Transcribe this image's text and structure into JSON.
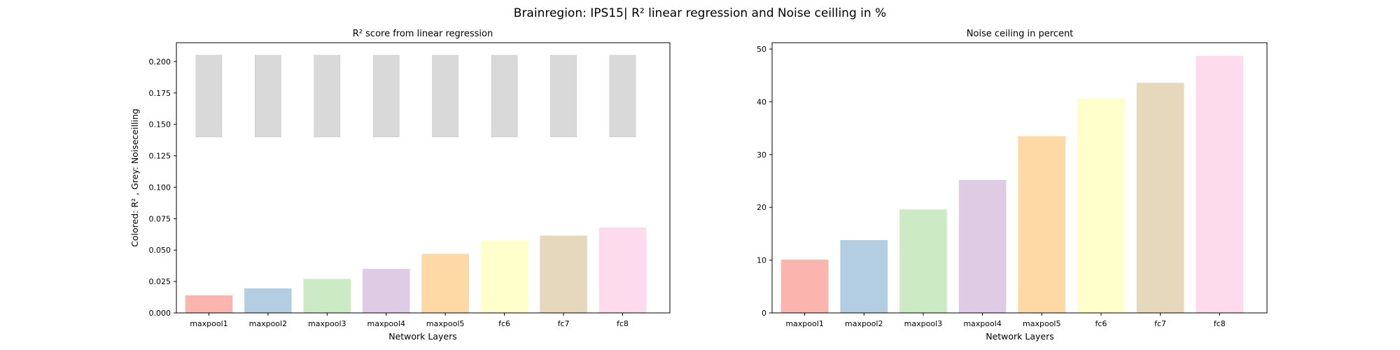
{
  "figure": {
    "title": "Brainregion: IPS15| R² linear regression and Noise ceilling in %"
  },
  "chart_data": [
    {
      "type": "bar",
      "title": "R² score from linear regression",
      "xlabel": "Network Layers",
      "ylabel": "Colored: R² , Grey: Noiseceilling",
      "categories": [
        "maxpool1",
        "maxpool2",
        "maxpool3",
        "maxpool4",
        "maxpool5",
        "fc6",
        "fc7",
        "fc8"
      ],
      "ylim": [
        0,
        0.215
      ],
      "yticks": [
        "0.000",
        "0.025",
        "0.050",
        "0.075",
        "0.100",
        "0.125",
        "0.150",
        "0.175",
        "0.200"
      ],
      "colors": [
        "#fbb4ae",
        "#b3cde3",
        "#ccebc5",
        "#decbe4",
        "#fed9a6",
        "#ffffcc",
        "#e5d8bd",
        "#fddaec"
      ],
      "noise_color": "#d9d9d9",
      "series": [
        {
          "values": [
            0.014,
            0.0195,
            0.027,
            0.035,
            0.047,
            0.0575,
            0.0615,
            0.068
          ]
        },
        {
          "values": [
            0.205,
            0.205,
            0.205,
            0.205,
            0.205,
            0.205,
            0.205,
            0.205
          ],
          "base": [
            0.14,
            0.14,
            0.14,
            0.14,
            0.14,
            0.14,
            0.14,
            0.14
          ]
        }
      ]
    },
    {
      "type": "bar",
      "title": "Noise ceiling in percent",
      "xlabel": "Network Layers",
      "ylabel": "",
      "categories": [
        "maxpool1",
        "maxpool2",
        "maxpool3",
        "maxpool4",
        "maxpool5",
        "fc6",
        "fc7",
        "fc8"
      ],
      "ylim": [
        0,
        51.2
      ],
      "yticks": [
        "0",
        "10",
        "20",
        "30",
        "40",
        "50"
      ],
      "colors": [
        "#fbb4ae",
        "#b3cde3",
        "#ccebc5",
        "#decbe4",
        "#fed9a6",
        "#ffffcc",
        "#e5d8bd",
        "#fddaec"
      ],
      "values": [
        10.1,
        13.8,
        19.6,
        25.2,
        33.5,
        40.6,
        43.6,
        48.7
      ]
    }
  ]
}
